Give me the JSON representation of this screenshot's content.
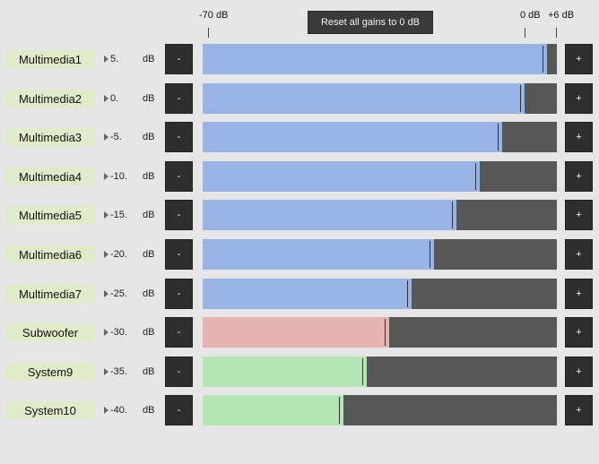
{
  "scale": {
    "min_label": "-70 dB",
    "zero_label": "0 dB",
    "max_label": "+6 dB",
    "min_db": -70,
    "max_db": 6
  },
  "reset_button": {
    "label": "Reset all gains to 0 dB"
  },
  "unit_label": "dB",
  "minus_label": "-",
  "plus_label": "+",
  "colors": {
    "blue": "#98b3e6",
    "red": "#e6b3b3",
    "green": "#b3e6b3"
  },
  "channels": [
    {
      "name": "Multimedia1",
      "gain_text": "5.",
      "gain_db": 5,
      "color": "#98b3e6"
    },
    {
      "name": "Multimedia2",
      "gain_text": "0.",
      "gain_db": 0,
      "color": "#98b3e6"
    },
    {
      "name": "Multimedia3",
      "gain_text": "-5.",
      "gain_db": -5,
      "color": "#98b3e6"
    },
    {
      "name": "Multimedia4",
      "gain_text": "-10.",
      "gain_db": -10,
      "color": "#98b3e6"
    },
    {
      "name": "Multimedia5",
      "gain_text": "-15.",
      "gain_db": -15,
      "color": "#98b3e6"
    },
    {
      "name": "Multimedia6",
      "gain_text": "-20.",
      "gain_db": -20,
      "color": "#98b3e6"
    },
    {
      "name": "Multimedia7",
      "gain_text": "-25.",
      "gain_db": -25,
      "color": "#98b3e6"
    },
    {
      "name": "Subwoofer",
      "gain_text": "-30.",
      "gain_db": -30,
      "color": "#e6b3b3"
    },
    {
      "name": "System9",
      "gain_text": "-35.",
      "gain_db": -35,
      "color": "#b3e6b3"
    },
    {
      "name": "System10",
      "gain_text": "-40.",
      "gain_db": -40,
      "color": "#b3e6b3"
    }
  ]
}
